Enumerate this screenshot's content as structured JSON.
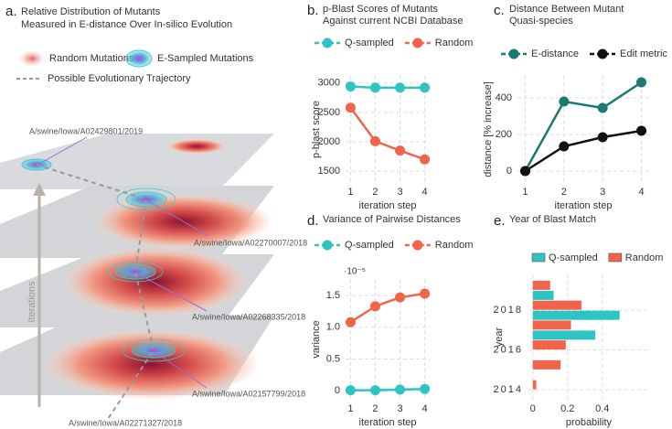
{
  "illustration": {
    "panel": "a.",
    "title": [
      "Relative Distribution of Mutants",
      "Measured in E-distance Over In-silico Evolution"
    ],
    "legend": [
      "Random Mutations",
      "E-Sampled Mutations",
      "Possible Evolutionary Trajectory"
    ],
    "axis_label": "Iterations",
    "strains": [
      "A/swine/Iowa/A02429801/2019",
      "A/swine/Iowa/A02270007/2018",
      "A/swine/Iowa/A02268335/2018",
      "A/swine/Iowa/A02157799/2018",
      "A/swine/Iowa/A02271327/2018"
    ]
  },
  "chart_data": [
    {
      "type": "line",
      "panel": "b.",
      "title": [
        "p-Blast Scores of Mutants",
        "Against current NCBI Database"
      ],
      "x": [
        1,
        2,
        3,
        4
      ],
      "xlim": [
        0.8,
        4.2
      ],
      "xticks": [
        1,
        2,
        3,
        4
      ],
      "ylim": [
        1300,
        3120
      ],
      "yticks": [
        1500,
        2000,
        2500,
        3000
      ],
      "xlabel": "iteration step",
      "ylabel": "p-blast score",
      "grid": true,
      "legend": "top",
      "series": [
        {
          "name": "Q-sampled",
          "color": "#2ec4c4",
          "values": [
            2940,
            2920,
            2920,
            2920
          ]
        },
        {
          "name": "Random",
          "color": "#f2634c",
          "values": [
            2580,
            2010,
            1850,
            1700
          ]
        }
      ]
    },
    {
      "type": "line",
      "panel": "c.",
      "title": [
        "Distance Between Mutant",
        "Quasi-species"
      ],
      "x": [
        1,
        2,
        3,
        4
      ],
      "xlim": [
        0.8,
        4.2
      ],
      "xticks": [
        1,
        2,
        3,
        4
      ],
      "ylim": [
        -65,
        520
      ],
      "yticks": [
        0,
        200,
        400
      ],
      "xlabel": "iteration step",
      "ylabel": "distance [% increase]",
      "grid": true,
      "legend": "top",
      "series": [
        {
          "name": "E-distance",
          "color": "#1b7a72",
          "values": [
            0,
            380,
            345,
            485
          ]
        },
        {
          "name": "Edit metric",
          "color": "#111111",
          "values": [
            0,
            135,
            185,
            220
          ]
        }
      ]
    },
    {
      "type": "line",
      "panel": "d.",
      "title": [
        "Variance of Pairwise Distances"
      ],
      "x": [
        1,
        2,
        3,
        4
      ],
      "xlim": [
        0.8,
        4.2
      ],
      "xticks": [
        1,
        2,
        3,
        4
      ],
      "ylim": [
        -0.14,
        1.76
      ],
      "yticks": [
        0,
        0.5,
        {
          "value": 1,
          "label": "1.0"
        },
        1.5
      ],
      "y_offset_label": "·10⁻⁵",
      "xlabel": "iteration step",
      "ylabel": "variance",
      "grid": true,
      "legend": "top",
      "series": [
        {
          "name": "Q-sampled",
          "color": "#2ec4c4",
          "values": [
            0.01,
            0.01,
            0.02,
            0.03
          ]
        },
        {
          "name": "Random",
          "color": "#f2634c",
          "values": [
            1.08,
            1.33,
            1.47,
            1.53
          ]
        }
      ]
    },
    {
      "type": "bar",
      "orientation": "horizontal",
      "panel": "e.",
      "title": [
        "Year of Blast Match"
      ],
      "y": [
        2019,
        2018,
        2017,
        2016,
        2015,
        2014
      ],
      "ylim": [
        2013.5,
        2019.8
      ],
      "yticks": [
        2014,
        2016,
        2018
      ],
      "xlim": [
        -0.025,
        0.67
      ],
      "xticks": [
        0,
        0.2,
        0.4
      ],
      "xlabel": "probability",
      "ylabel": "year",
      "grid": true,
      "legend": "top",
      "series": [
        {
          "name": "Q-sampled",
          "color": "#2ec4c4",
          "values": [
            0.12,
            0.5,
            0.36,
            0,
            0,
            0
          ]
        },
        {
          "name": "Random",
          "color": "#f2634c",
          "values": [
            0.1,
            0.28,
            0.22,
            0.19,
            0.16,
            0.02
          ]
        }
      ]
    }
  ]
}
